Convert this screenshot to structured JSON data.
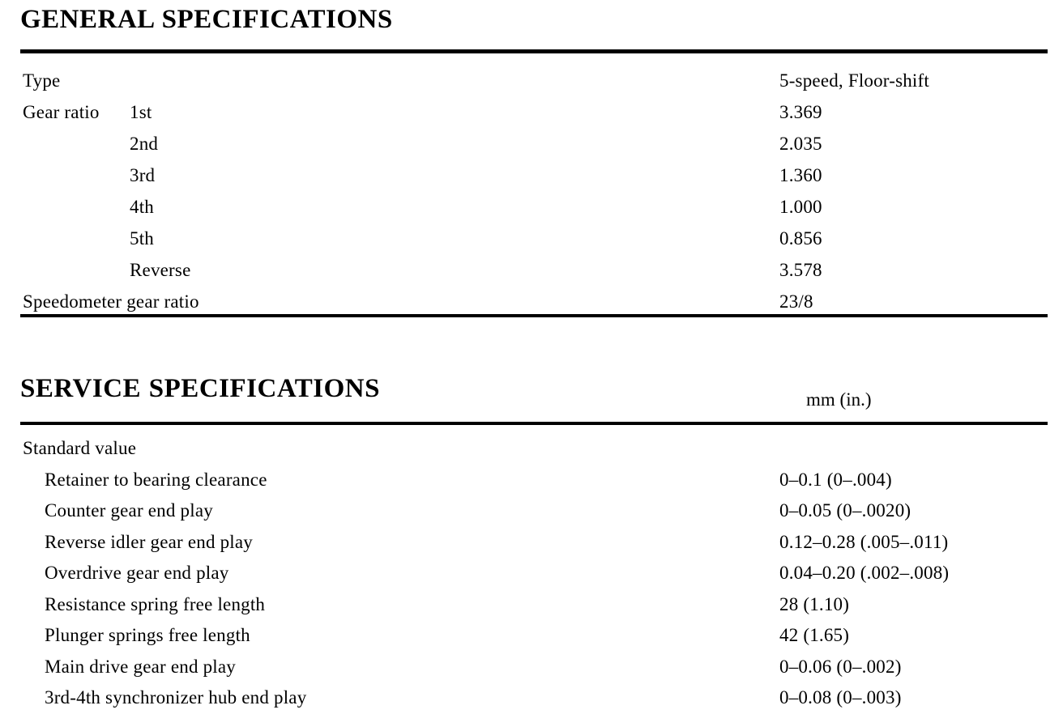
{
  "page": {
    "background_color": "#ffffff",
    "text_color": "#000000",
    "kind": "scanned service manual specifications page"
  },
  "general": {
    "title": "GENERAL SPECIFICATIONS",
    "rows": [
      {
        "label": "Type",
        "sub": "",
        "value": "5-speed, Floor-shift"
      },
      {
        "label": "Gear ratio",
        "sub": "1st",
        "value": "3.369"
      },
      {
        "label": "",
        "sub": "2nd",
        "value": "2.035"
      },
      {
        "label": "",
        "sub": "3rd",
        "value": "1.360"
      },
      {
        "label": "",
        "sub": "4th",
        "value": "1.000"
      },
      {
        "label": "",
        "sub": "5th",
        "value": "0.856"
      },
      {
        "label": "",
        "sub": "Reverse",
        "value": "3.578"
      },
      {
        "label": "Speedometer gear ratio",
        "sub": "",
        "value": "23/8"
      }
    ]
  },
  "service": {
    "title": "SERVICE SPECIFICATIONS",
    "unit_header": "mm (in.)",
    "rows": [
      {
        "label": "Standard value",
        "value": ""
      },
      {
        "label": "Retainer to bearing clearance",
        "value": "0–0.1 (0–.004)"
      },
      {
        "label": "Counter gear end play",
        "value": "0–0.05 (0–.0020)"
      },
      {
        "label": "Reverse idler gear end play",
        "value": "0.12–0.28 (.005–.011)"
      },
      {
        "label": "Overdrive gear end play",
        "value": "0.04–0.20 (.002–.008)"
      },
      {
        "label": "Resistance spring free length",
        "value": "28 (1.10)"
      },
      {
        "label": "Plunger springs free length",
        "value": "42 (1.65)"
      },
      {
        "label": "Main drive gear end play",
        "value": "0–0.06 (0–.002)"
      },
      {
        "label": "3rd-4th synchronizer hub end play",
        "value": "0–0.08 (0–.003)"
      }
    ]
  }
}
